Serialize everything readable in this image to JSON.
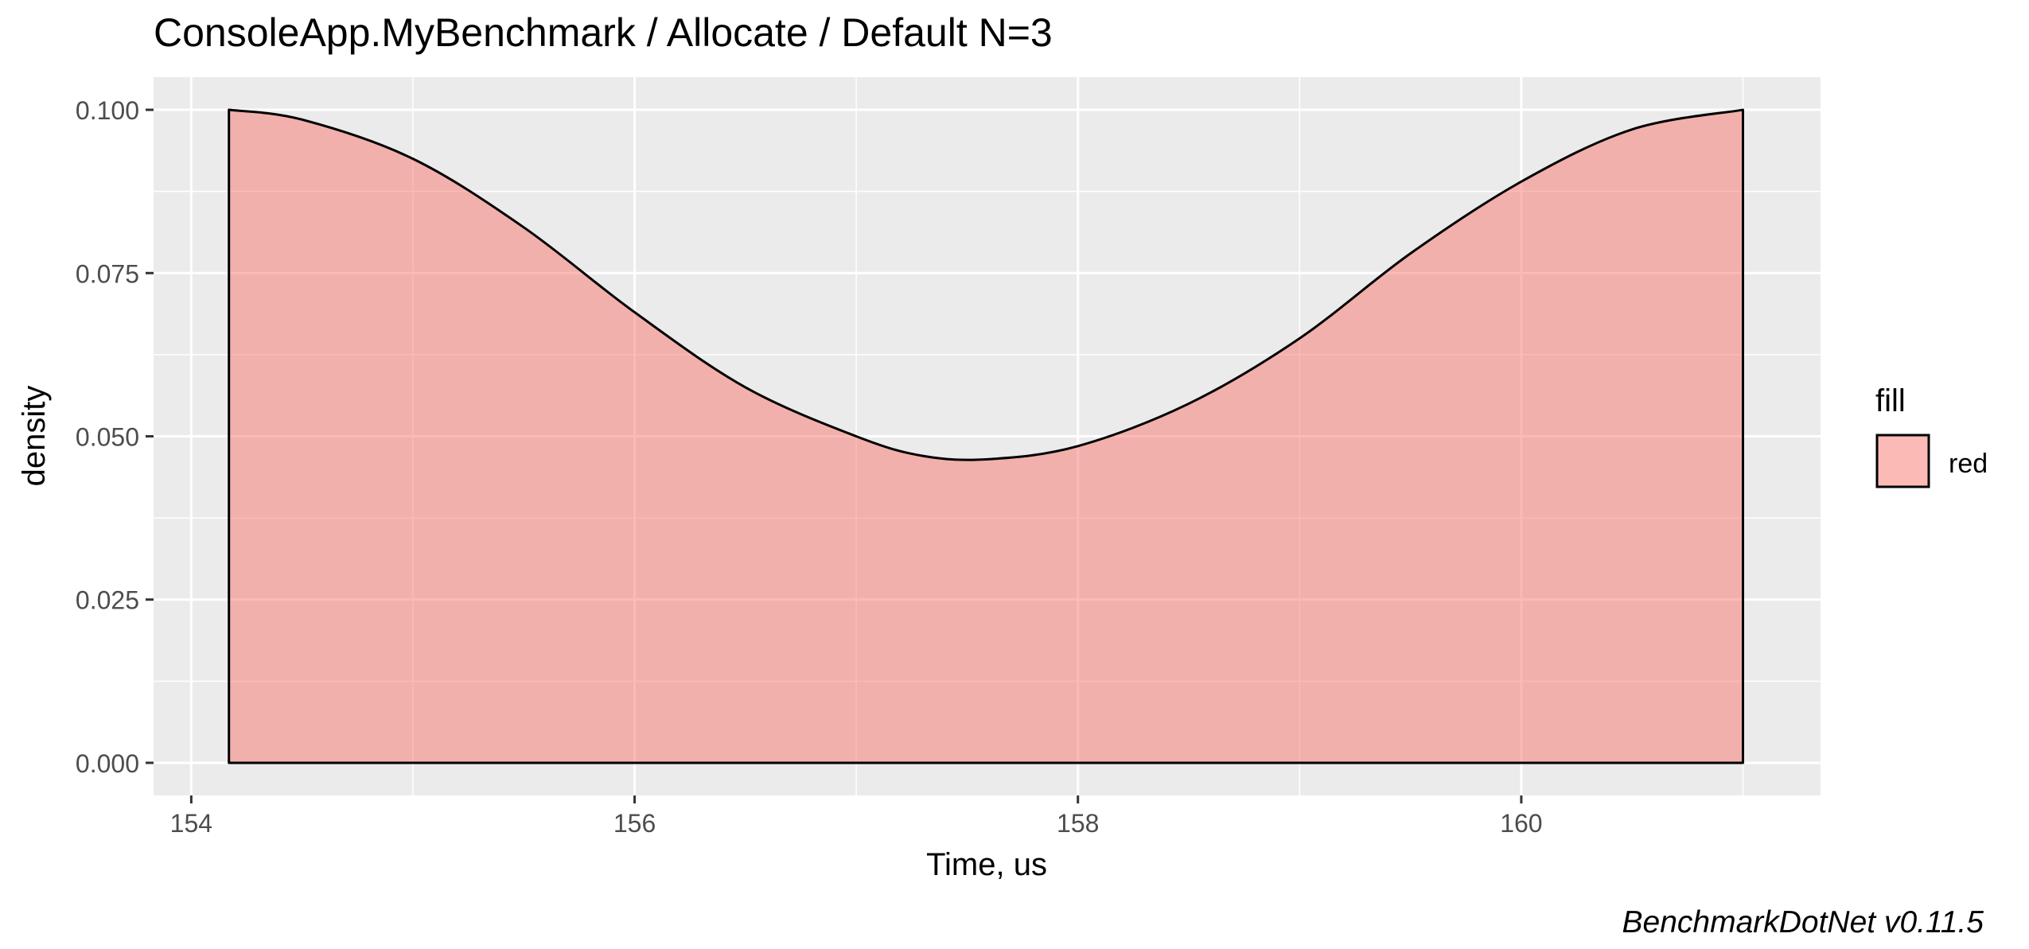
{
  "chart_data": {
    "type": "area",
    "title": "ConsoleApp.MyBenchmark / Allocate / Default N=3",
    "xlabel": "Time, us",
    "ylabel": "density",
    "xlim": [
      153.83,
      161.35
    ],
    "ylim": [
      -0.005,
      0.105
    ],
    "x_ticks": [
      {
        "value": 154,
        "label": "154"
      },
      {
        "value": 156,
        "label": "156"
      },
      {
        "value": 158,
        "label": "158"
      },
      {
        "value": 160,
        "label": "160"
      }
    ],
    "x_minor_grid": [
      155,
      157,
      159,
      161
    ],
    "y_ticks": [
      {
        "value": 0.0,
        "label": "0.000"
      },
      {
        "value": 0.025,
        "label": "0.025"
      },
      {
        "value": 0.05,
        "label": "0.050"
      },
      {
        "value": 0.075,
        "label": "0.075"
      },
      {
        "value": 0.1,
        "label": "0.100"
      }
    ],
    "y_minor_grid": [
      0.0125,
      0.0375,
      0.0625,
      0.0875
    ],
    "grid": true,
    "panel_color": "#EBEBEB",
    "series": [
      {
        "name": "red",
        "fill": "#F8766D",
        "fill_opacity": 0.5,
        "stroke": "#000000",
        "x": [
          154.17,
          154.5,
          155.0,
          155.5,
          156.0,
          156.5,
          157.0,
          157.3,
          157.6,
          158.0,
          158.5,
          159.0,
          159.5,
          160.0,
          160.5,
          161.0
        ],
        "y": [
          0.1,
          0.0985,
          0.0925,
          0.082,
          0.069,
          0.0575,
          0.05,
          0.047,
          0.0465,
          0.0485,
          0.055,
          0.065,
          0.078,
          0.089,
          0.097,
          0.1
        ]
      }
    ],
    "legend": {
      "title": "fill",
      "entries": [
        {
          "label": "red",
          "color": "#F8766D"
        }
      ],
      "position": "right"
    }
  },
  "caption": "BenchmarkDotNet v0.11.5"
}
